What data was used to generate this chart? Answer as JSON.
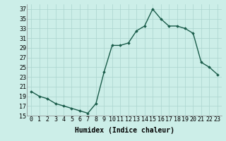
{
  "x": [
    0,
    1,
    2,
    3,
    4,
    5,
    6,
    7,
    8,
    9,
    10,
    11,
    12,
    13,
    14,
    15,
    16,
    17,
    18,
    19,
    20,
    21,
    22,
    23
  ],
  "y": [
    20,
    19,
    18.5,
    17.5,
    17,
    16.5,
    16,
    15.5,
    17.5,
    24,
    29.5,
    29.5,
    30,
    32.5,
    33.5,
    37,
    35,
    33.5,
    33.5,
    33,
    32,
    26,
    25,
    23.5
  ],
  "line_color": "#1a5c4a",
  "marker": "D",
  "marker_size": 1.8,
  "bg_color": "#cceee8",
  "grid_color": "#aad4ce",
  "xlabel": "Humidex (Indice chaleur)",
  "ylim": [
    15,
    38
  ],
  "xlim": [
    -0.5,
    23.5
  ],
  "yticks": [
    15,
    17,
    19,
    21,
    23,
    25,
    27,
    29,
    31,
    33,
    35,
    37
  ],
  "xtick_labels": [
    "0",
    "1",
    "2",
    "3",
    "4",
    "5",
    "6",
    "7",
    "8",
    "9",
    "10",
    "11",
    "12",
    "13",
    "14",
    "15",
    "16",
    "17",
    "18",
    "19",
    "20",
    "21",
    "22",
    "23"
  ],
  "xlabel_fontsize": 7,
  "tick_fontsize": 6,
  "line_width": 1.0
}
